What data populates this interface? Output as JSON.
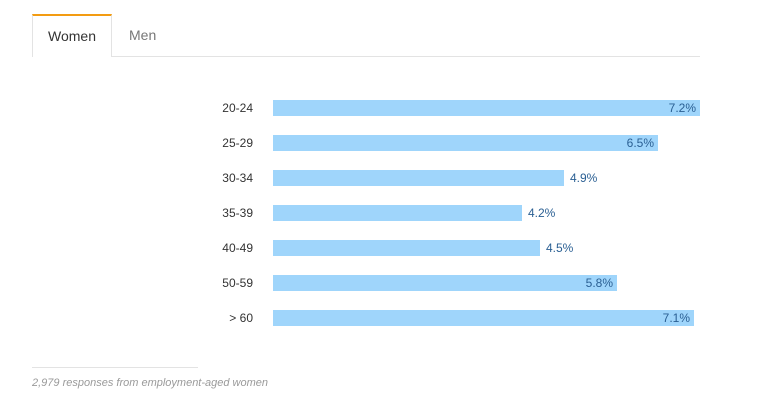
{
  "tabs": [
    {
      "label": "Women",
      "active": true
    },
    {
      "label": "Men",
      "active": false
    }
  ],
  "colors": {
    "bar": "#9fd5fb",
    "value_text": "#2a5f93",
    "tab_accent": "#f39c12"
  },
  "footer": {
    "note": "2,979 responses from employment-aged women"
  },
  "chart_data": {
    "type": "bar",
    "orientation": "horizontal",
    "categories": [
      "20-24",
      "25-29",
      "30-34",
      "35-39",
      "40-49",
      "50-59",
      "> 60"
    ],
    "values": [
      7.2,
      6.5,
      4.9,
      4.2,
      4.5,
      5.8,
      7.1
    ],
    "value_labels": [
      "7.2%",
      "6.5%",
      "4.9%",
      "4.2%",
      "4.5%",
      "5.8%",
      "7.1%"
    ],
    "title": "",
    "xlabel": "",
    "ylabel": "",
    "xlim": [
      0,
      7.2
    ],
    "grid": false,
    "legend": "none"
  }
}
